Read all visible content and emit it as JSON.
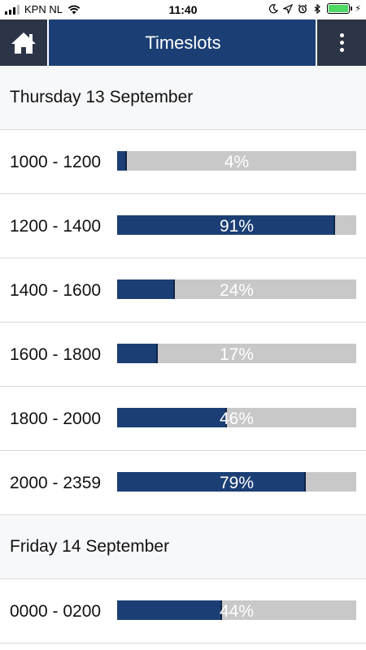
{
  "status_bar": {
    "carrier": "KPN NL",
    "time": "11:40",
    "icons": [
      "signal-icon",
      "wifi-icon",
      "moon-icon",
      "location-icon",
      "alarm-icon",
      "bluetooth-icon",
      "battery-icon",
      "charging-icon"
    ]
  },
  "header": {
    "title": "Timeslots",
    "home_icon": "home-icon",
    "menu_icon": "more-vertical-icon"
  },
  "colors": {
    "header_bg": "#1b3f74",
    "button_bg": "#2c3447",
    "bar_fill": "#1b3f74",
    "bar_bg": "#c8c8c8"
  },
  "days": [
    {
      "label": "Thursday 13 September",
      "slots": [
        {
          "time": "1000 - 1200",
          "percent_label": "4%",
          "fill": 0.04
        },
        {
          "time": "1200 - 1400",
          "percent_label": "91%",
          "fill": 0.91
        },
        {
          "time": "1400 - 1600",
          "percent_label": "24%",
          "fill": 0.24
        },
        {
          "time": "1600 - 1800",
          "percent_label": "17%",
          "fill": 0.17
        },
        {
          "time": "1800 - 2000",
          "percent_label": "46%",
          "fill": 0.46
        },
        {
          "time": "2000 - 2359",
          "percent_label": "79%",
          "fill": 0.79
        }
      ]
    },
    {
      "label": "Friday 14 September",
      "slots": [
        {
          "time": "0000 - 0200",
          "percent_label": "44%",
          "fill": 0.44
        }
      ]
    }
  ]
}
